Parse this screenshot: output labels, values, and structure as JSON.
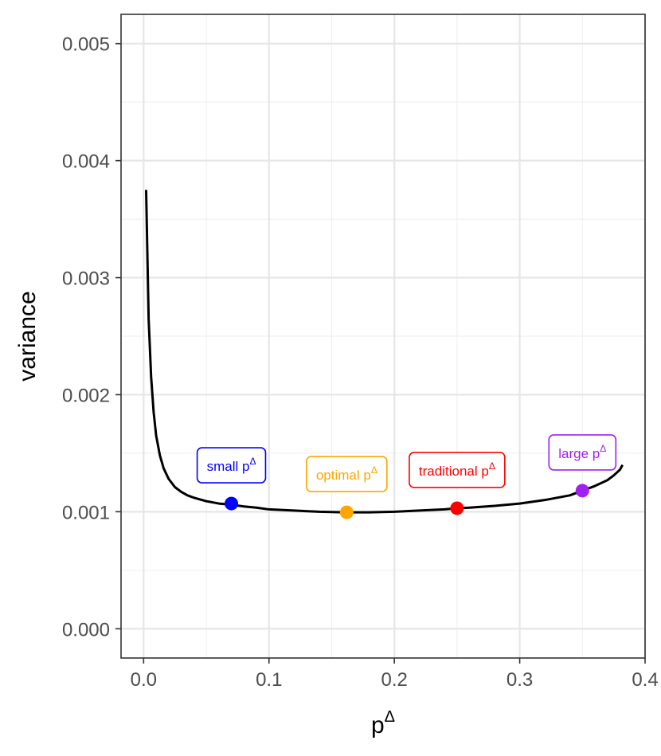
{
  "chart_data": {
    "type": "line",
    "title": "",
    "xlabel": "p",
    "xlabel_superscript": "Δ",
    "ylabel": "variance",
    "xlim": [
      -0.018,
      0.4
    ],
    "ylim": [
      -0.00025,
      0.00525
    ],
    "x_ticks": [
      0.0,
      0.1,
      0.2,
      0.3,
      0.4
    ],
    "x_tick_labels": [
      "0.0",
      "0.1",
      "0.2",
      "0.3",
      "0.4"
    ],
    "y_ticks": [
      0.0,
      0.001,
      0.002,
      0.003,
      0.004,
      0.005
    ],
    "y_tick_labels": [
      "0.000",
      "0.001",
      "0.002",
      "0.003",
      "0.004",
      "0.005"
    ],
    "grid": true,
    "theme": "black-and-white",
    "series": [
      {
        "color": "#000000",
        "x": [
          0.002,
          0.004,
          0.006,
          0.008,
          0.01,
          0.013,
          0.016,
          0.02,
          0.025,
          0.03,
          0.035,
          0.04,
          0.05,
          0.06,
          0.07,
          0.08,
          0.09,
          0.1,
          0.12,
          0.14,
          0.16,
          0.18,
          0.2,
          0.22,
          0.24,
          0.25,
          0.26,
          0.28,
          0.3,
          0.32,
          0.34,
          0.35,
          0.36,
          0.37,
          0.375,
          0.38,
          0.382
        ],
        "y": [
          0.00375,
          0.00265,
          0.00215,
          0.00185,
          0.00165,
          0.00148,
          0.00137,
          0.00128,
          0.00121,
          0.00117,
          0.00114,
          0.00112,
          0.00109,
          0.00107,
          0.00106,
          0.001045,
          0.001035,
          0.00102,
          0.00101,
          0.001,
          0.000995,
          0.000995,
          0.001,
          0.00101,
          0.00102,
          0.00103,
          0.001035,
          0.00105,
          0.00107,
          0.0011,
          0.00114,
          0.00118,
          0.00122,
          0.00127,
          0.00131,
          0.00136,
          0.0014
        ]
      }
    ],
    "points": [
      {
        "label": "small p",
        "sup": "Δ",
        "x": 0.07,
        "y": 0.00107,
        "color": "#0000ff"
      },
      {
        "label": "optimal p",
        "sup": "Δ",
        "x": 0.162,
        "y": 0.000995,
        "color": "#ffa500"
      },
      {
        "label": "traditional p",
        "sup": "Δ",
        "x": 0.25,
        "y": 0.00103,
        "color": "#ff0000"
      },
      {
        "label": "large p",
        "sup": "Δ",
        "x": 0.35,
        "y": 0.00118,
        "color": "#a020f0"
      }
    ]
  }
}
